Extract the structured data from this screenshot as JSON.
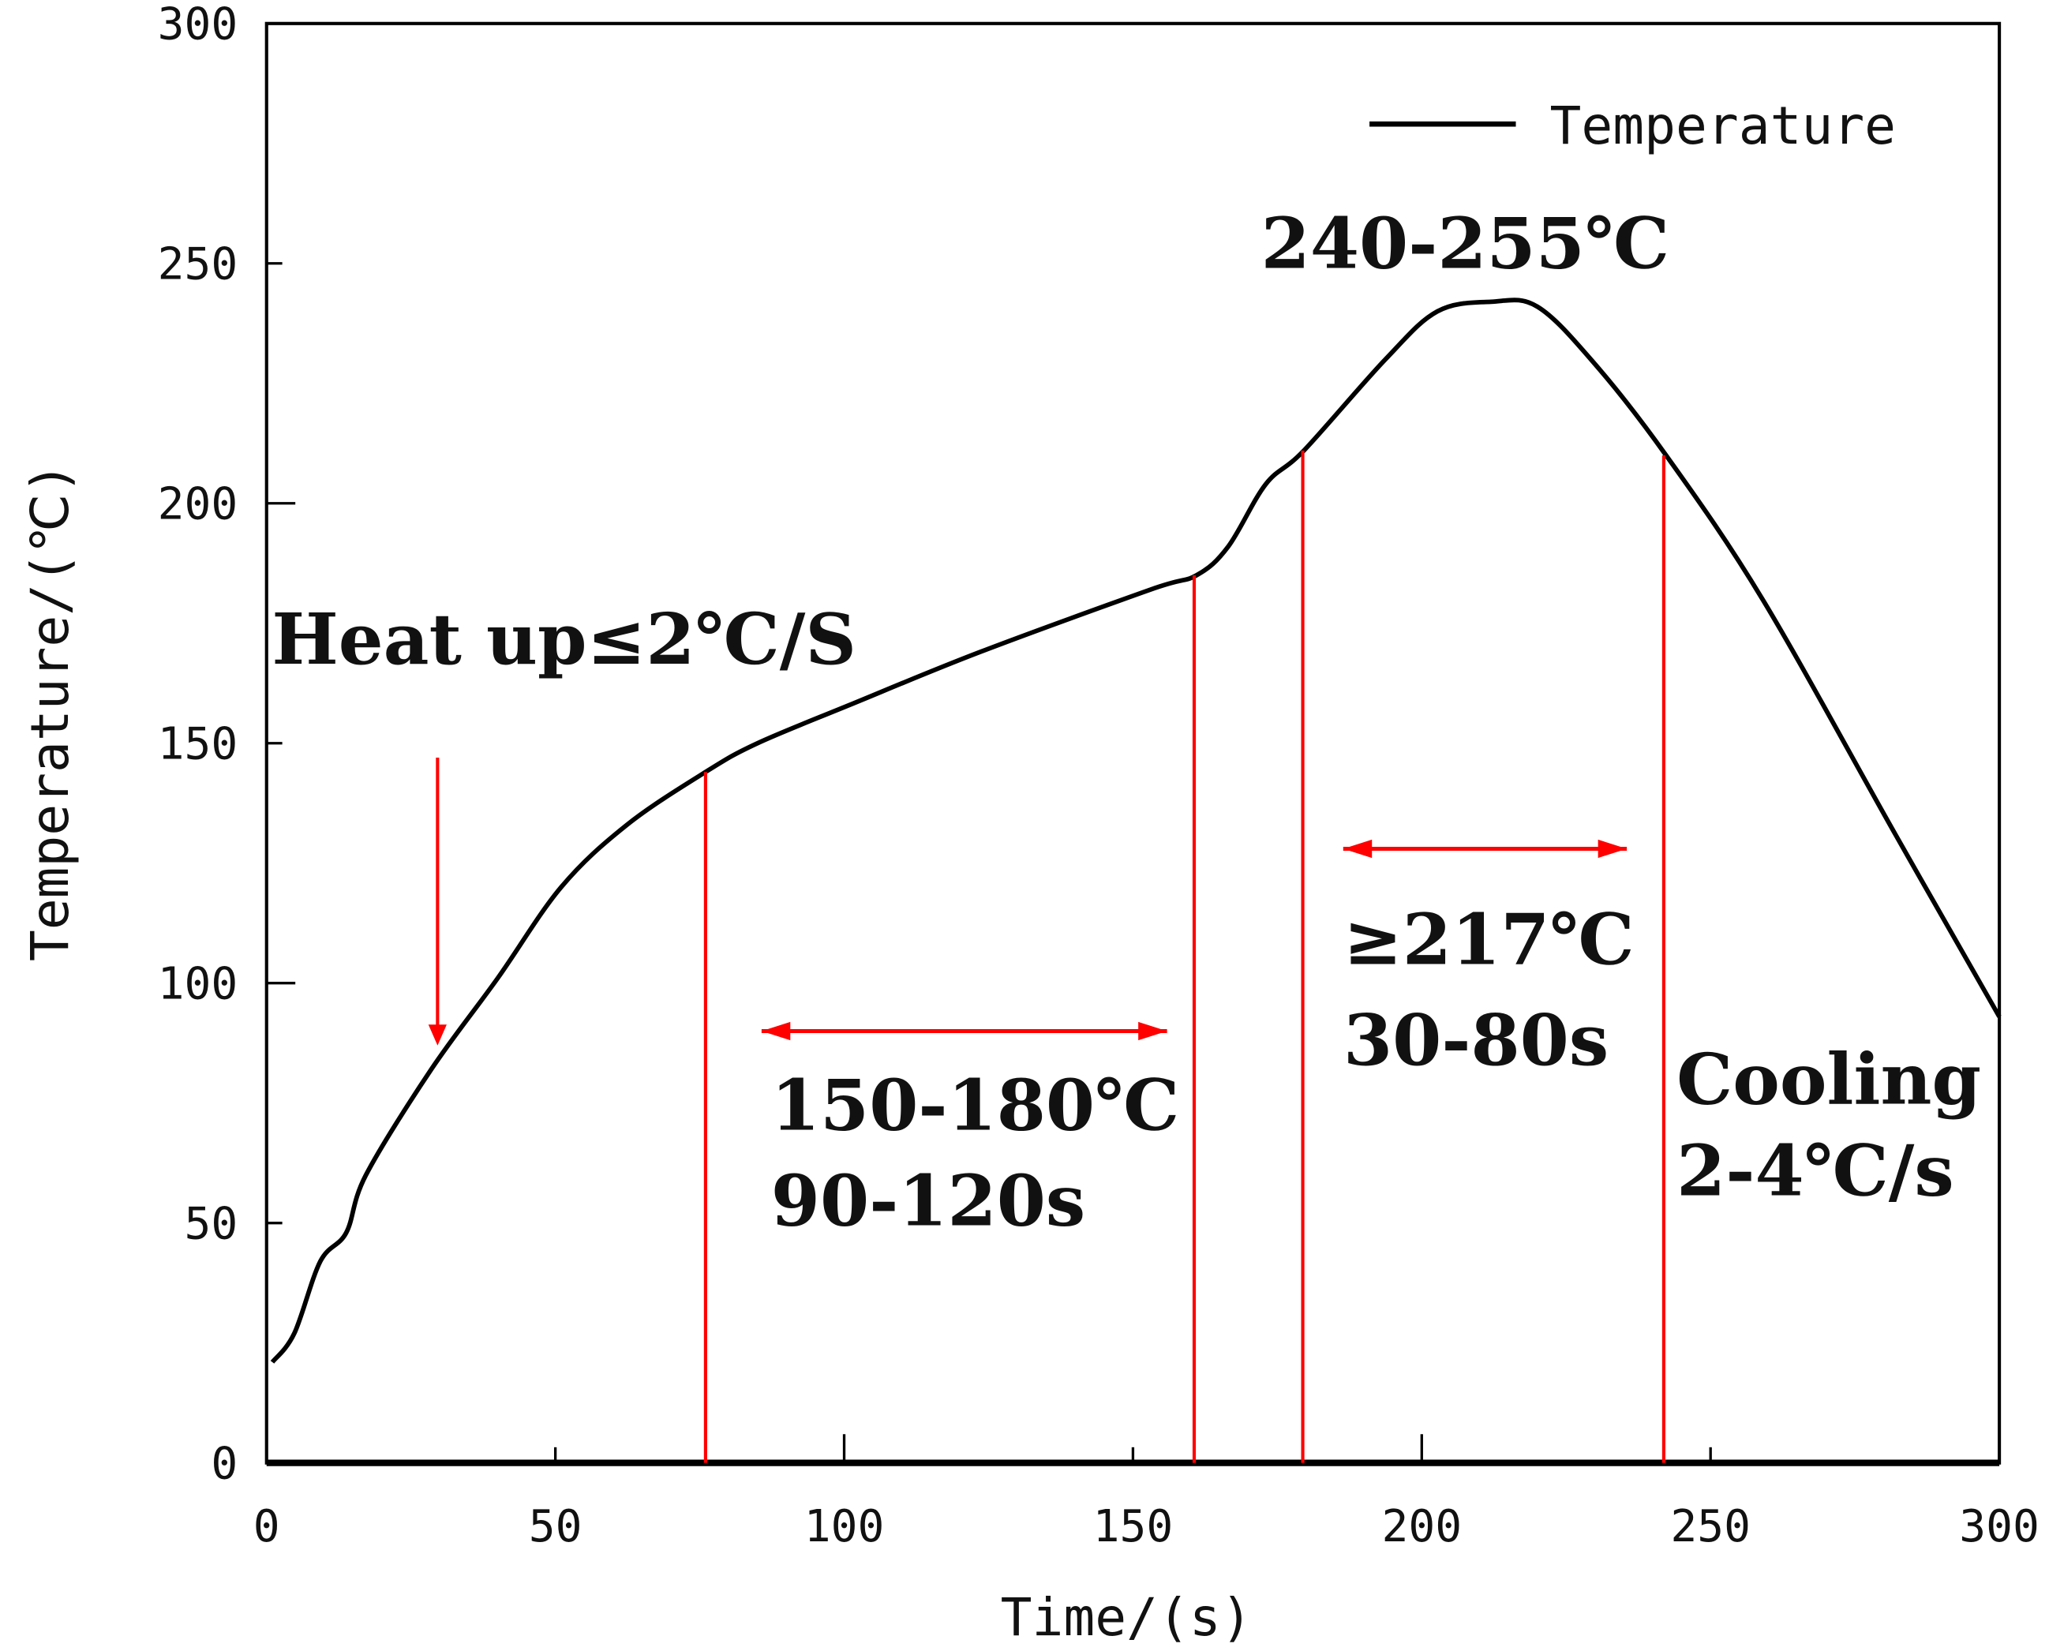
{
  "chart_data": {
    "type": "line",
    "title": "",
    "xlabel": "Time/(s)",
    "ylabel": "Temperature/(℃)",
    "xlim": [
      0,
      300
    ],
    "ylim": [
      0,
      300
    ],
    "xticks": [
      0,
      50,
      100,
      150,
      200,
      250,
      300
    ],
    "yticks": [
      0,
      50,
      100,
      150,
      200,
      250,
      300
    ],
    "grid": false,
    "legend": {
      "position": "top-right",
      "entries": [
        "Temperature"
      ]
    },
    "series": [
      {
        "name": "Temperature",
        "color": "#000000",
        "x": [
          1,
          4.8,
          9.3,
          13.8,
          17.2,
          28.5,
          40,
          51,
          62.4,
          76,
          85,
          101,
          123.5,
          153,
          161,
          166.5,
          173,
          179.6,
          193.7,
          202.7,
          212,
          220,
          230,
          242.3,
          259,
          282,
          300
        ],
        "y": [
          21,
          27,
          42,
          48,
          60,
          82,
          101,
          120,
          133,
          144,
          150,
          158,
          169,
          182,
          185,
          191,
          204,
          211,
          230,
          240,
          242,
          241,
          229,
          210,
          180,
          131,
          93
        ]
      }
    ],
    "markers": {
      "color": "#ff0000",
      "vlines": [
        {
          "x": 76,
          "y_top": 144
        },
        {
          "x": 160.6,
          "y_top": 185
        },
        {
          "x": 179.4,
          "y_top": 211
        },
        {
          "x": 241.9,
          "y_top": 210
        }
      ],
      "down_arrow": {
        "x": 29.6,
        "y_from": 147,
        "y_to": 87
      },
      "double_arrows": [
        {
          "x1": 85.7,
          "x2": 155.9,
          "y": 90
        },
        {
          "x1": 186.4,
          "x2": 235.5,
          "y": 128
        }
      ]
    },
    "annotations": {
      "heat_up": "Heat up≤2℃/S",
      "soak_temp": "150-180℃",
      "soak_time": "90-120s",
      "peak": "240-255℃",
      "reflow_temp": "≥217℃",
      "reflow_time": "30-80s",
      "cooling": "Cooling",
      "cooling_rate": "2-4℃/s"
    }
  }
}
